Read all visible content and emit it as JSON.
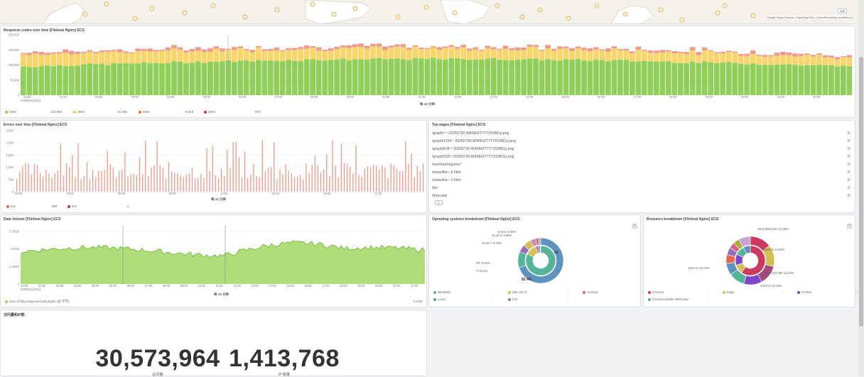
{
  "map": {
    "attribution": "Elastic Maps Service | OpenMapTiles | OpenStreetMap contributors",
    "zoom_btn": "100"
  },
  "response_codes": {
    "title": "Response codes over time [Filebeat Nginx] ECS",
    "x_caption": "每 10 分钟",
    "y_ticks": [
      "0",
      "50,000",
      "100,000",
      "150,000",
      "200,000"
    ],
    "x_ticks": [
      "23:00",
      "01:00",
      "02:00",
      "03:00",
      "04:00",
      "05:00",
      "06:00",
      "07:00",
      "08:00",
      "09:00",
      "10:00",
      "11:00",
      "12:00",
      "13:00",
      "14:00",
      "15:00",
      "16:00",
      "17:00",
      "18:00",
      "19:00",
      "20:00",
      "21:00",
      "22:00"
    ],
    "date_label": "2025年6月30日",
    "legend": [
      {
        "label": "200s",
        "value": "103,996",
        "color": "#8fcf5a"
      },
      {
        "label": "300s",
        "value": "34,769",
        "color": "#f9c94e"
      },
      {
        "label": "400s",
        "value": "8,915",
        "color": "#e7664c"
      },
      {
        "label": "500s",
        "value": "570",
        "color": "#b0328c"
      }
    ]
  },
  "errors": {
    "title": "Errors over time [Filebeat Nginx] ECS",
    "x_caption": "每 10 分钟",
    "y_ticks": [
      "0",
      "500",
      "1,000",
      "1,500",
      "2,000",
      "2,500"
    ],
    "x_ticks": [
      "00:00",
      "03:00",
      "06:00",
      "09:00",
      "12:00",
      "15:00",
      "18:00",
      "21:00"
    ],
    "legend": [
      {
        "label": "4xx",
        "value": "595",
        "color": "#e7664c"
      },
      {
        "label": "5xx",
        "value": "0",
        "color": "#b0328c"
      }
    ]
  },
  "top_pages": {
    "title": "Top pages [Filebeat Nginx] ECS",
    "rows": [
      {
        "path": "/graph/一-20250730-W4I9H2T7Y7X53BCp.png",
        "count": "0"
      },
      {
        "path": "/graph/1154一20250730-W4I9H2T7Y7X53BCp.png",
        "count": "0"
      },
      {
        "path": "/graph/634一20250730-W4I9H2T7Y7X53BCp.png",
        "count": "0"
      },
      {
        "path": "/graph/528一20250730-W4I9H2T7Y7X53BCp.png",
        "count": "0"
      },
      {
        "path": "/member/register/",
        "count": "0"
      },
      {
        "path": "/news/list---5.html",
        "count": "0"
      },
      {
        "path": "/news/list---1.html",
        "count": "0"
      },
      {
        "path": "/kv/",
        "count": "0"
      },
      {
        "path": "/forecast/",
        "count": "0"
      }
    ],
    "pager": "1"
  },
  "data_volume": {
    "title": "Data Volume [Filebeat Nginx] ECS",
    "x_caption": "每 10 分钟",
    "y_ticks": [
      "0",
      "1.25GB",
      "2.5GB",
      "3.75GB"
    ],
    "x_ticks": [
      "23:00",
      "01:00",
      "02:00",
      "03:00",
      "04:00",
      "05:00",
      "06:00",
      "07:00",
      "08:00",
      "09:00",
      "10:00",
      "11:00",
      "12:00",
      "13:00",
      "14:00",
      "15:00",
      "16:00",
      "17:00",
      "18:00",
      "19:00",
      "20:00",
      "21:00",
      "22:00"
    ],
    "date_label": "2025年6月30日",
    "legend_label": "Sum of http.response.body.bytes (处 字节)",
    "legend_value": "3.1GB",
    "color": "#8fcf5a"
  },
  "os_breakdown": {
    "title": "Operating systems breakdown [Filebeat Nginx] ECS",
    "labels": [
      "10.6.8: 2.02%",
      "10.15.3: 3.88%",
      "10.15.7: 5.78%",
      "XP: 5.31%",
      "7: 11.4%",
      "10",
      "82.4%"
    ],
    "legend": [
      {
        "label": "Windows",
        "color": "#54b399"
      },
      {
        "label": "Mac OS X",
        "color": "#d6bf57"
      },
      {
        "label": "Android",
        "color": "#d36086"
      },
      {
        "label": "Linux",
        "color": "#6092c0"
      },
      {
        "label": "iOS",
        "color": "#9170b8"
      }
    ]
  },
  "browser_breakdown": {
    "title": "Browsers breakdown [Filebeat Nginx] ECS",
    "labels": [
      "58.0.3029.110: 14.39%",
      "109.0.0: 14.66%",
      "84.0.4147.89: 13.12%",
      "134.0.0: 12.15%",
      "140.0.0: 10.74%"
    ],
    "legend": [
      {
        "label": "Chrome",
        "color": "#ca3b5f"
      },
      {
        "label": "Edge",
        "color": "#d6bf57"
      },
      {
        "label": "Firefox",
        "color": "#7b46c9"
      },
      {
        "label": "Chrome Mobile WebView",
        "color": "#54b399"
      }
    ]
  },
  "visitors": {
    "title": "访问量和IP数",
    "visits_value": "30,573,964",
    "visits_label": "访问量",
    "ip_value": "1,413,768",
    "ip_label": "IP 数量"
  }
}
